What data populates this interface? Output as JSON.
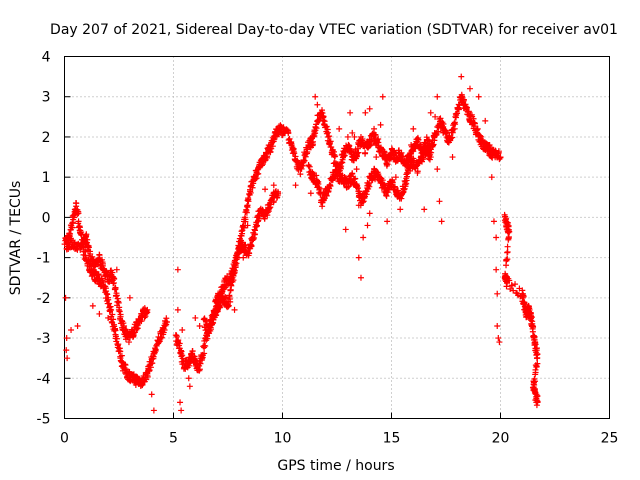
{
  "chart_data": {
    "type": "scatter",
    "title": "Day 207 of 2021, Sidereal Day-to-day VTEC variation (SDTVAR) for receiver av01",
    "xlabel": "GPS time / hours",
    "ylabel": "SDTVAR / TECUs",
    "xlim": [
      0,
      25
    ],
    "ylim": [
      -5,
      4
    ],
    "xticks": [
      0,
      5,
      10,
      15,
      20,
      25
    ],
    "yticks": [
      -5,
      -4,
      -3,
      -2,
      -1,
      0,
      1,
      2,
      3,
      4
    ],
    "grid": true,
    "marker": "+",
    "color": "#ff0000",
    "series": [
      {
        "name": "SDTVAR",
        "track_points": [
          [
            0.0,
            -0.6
          ],
          [
            0.2,
            -0.5
          ],
          [
            0.4,
            0.0
          ],
          [
            0.55,
            0.3
          ],
          [
            0.7,
            -0.3
          ],
          [
            0.9,
            -0.9
          ],
          [
            1.1,
            -1.2
          ],
          [
            1.3,
            -1.4
          ],
          [
            1.5,
            -1.5
          ],
          [
            1.7,
            -1.6
          ],
          [
            1.9,
            -1.9
          ],
          [
            2.1,
            -2.3
          ],
          [
            2.3,
            -2.8
          ],
          [
            2.5,
            -3.3
          ],
          [
            2.7,
            -3.7
          ],
          [
            2.9,
            -3.9
          ],
          [
            3.1,
            -4.0
          ],
          [
            3.3,
            -4.05
          ],
          [
            3.5,
            -4.1
          ],
          [
            3.7,
            -4.0
          ],
          [
            3.9,
            -3.7
          ],
          [
            4.1,
            -3.4
          ],
          [
            4.3,
            -3.1
          ],
          [
            4.5,
            -2.8
          ],
          [
            4.7,
            -2.6
          ]
        ],
        "track_points_2": [
          [
            0.1,
            -0.7
          ],
          [
            0.3,
            -0.6
          ],
          [
            0.6,
            -0.8
          ],
          [
            0.9,
            -0.6
          ],
          [
            1.0,
            -0.5
          ],
          [
            1.2,
            -1.0
          ],
          [
            1.4,
            -1.2
          ],
          [
            1.6,
            -1.0
          ],
          [
            1.8,
            -1.3
          ],
          [
            2.0,
            -1.5
          ],
          [
            2.2,
            -1.4
          ],
          [
            2.4,
            -2.0
          ],
          [
            2.6,
            -2.6
          ],
          [
            2.8,
            -2.9
          ],
          [
            3.0,
            -3.0
          ],
          [
            3.2,
            -2.8
          ],
          [
            3.4,
            -2.6
          ],
          [
            3.6,
            -2.4
          ],
          [
            3.8,
            -2.3
          ]
        ],
        "track_points_3": [
          [
            5.1,
            -3.0
          ],
          [
            5.3,
            -3.3
          ],
          [
            5.5,
            -3.7
          ],
          [
            5.7,
            -3.6
          ],
          [
            5.9,
            -3.4
          ],
          [
            6.1,
            -3.8
          ],
          [
            6.3,
            -3.5
          ],
          [
            6.5,
            -3.0
          ],
          [
            6.7,
            -2.7
          ],
          [
            6.9,
            -2.4
          ],
          [
            7.1,
            -2.2
          ],
          [
            7.3,
            -2.0
          ],
          [
            7.5,
            -2.2
          ],
          [
            7.7,
            -1.6
          ],
          [
            7.9,
            -1.0
          ],
          [
            8.1,
            -0.5
          ],
          [
            8.3,
            0.0
          ],
          [
            8.5,
            0.6
          ],
          [
            8.7,
            1.0
          ],
          [
            8.9,
            1.2
          ],
          [
            9.1,
            1.4
          ],
          [
            9.3,
            1.6
          ],
          [
            9.5,
            1.8
          ],
          [
            9.7,
            2.1
          ],
          [
            9.9,
            2.2
          ],
          [
            10.1,
            2.1
          ]
        ],
        "track_points_4": [
          [
            6.4,
            -2.6
          ],
          [
            6.6,
            -2.8
          ],
          [
            6.8,
            -2.5
          ],
          [
            7.0,
            -2.0
          ],
          [
            7.2,
            -1.8
          ],
          [
            7.4,
            -1.6
          ],
          [
            7.6,
            -1.5
          ],
          [
            7.8,
            -1.2
          ],
          [
            8.0,
            -0.8
          ],
          [
            8.2,
            -0.7
          ],
          [
            8.4,
            -0.9
          ],
          [
            8.6,
            -0.6
          ],
          [
            8.8,
            -0.2
          ],
          [
            9.0,
            0.2
          ],
          [
            9.2,
            0.0
          ],
          [
            9.4,
            0.3
          ],
          [
            9.6,
            0.5
          ],
          [
            9.8,
            0.6
          ]
        ],
        "track_points_5": [
          [
            10.2,
            2.1
          ],
          [
            10.4,
            1.8
          ],
          [
            10.6,
            1.4
          ],
          [
            10.8,
            1.2
          ],
          [
            11.0,
            1.5
          ],
          [
            11.2,
            1.8
          ],
          [
            11.4,
            1.9
          ],
          [
            11.6,
            2.4
          ],
          [
            11.8,
            2.6
          ],
          [
            12.0,
            2.2
          ],
          [
            12.2,
            1.8
          ],
          [
            12.4,
            1.4
          ],
          [
            12.6,
            1.2
          ],
          [
            12.8,
            1.6
          ],
          [
            13.0,
            1.8
          ],
          [
            13.2,
            1.5
          ],
          [
            13.4,
            1.6
          ],
          [
            13.6,
            1.9
          ],
          [
            13.8,
            1.7
          ],
          [
            14.0,
            1.9
          ],
          [
            14.2,
            2.0
          ],
          [
            14.4,
            1.8
          ],
          [
            14.6,
            1.6
          ],
          [
            14.8,
            1.4
          ],
          [
            15.0,
            1.6
          ],
          [
            15.2,
            1.5
          ],
          [
            15.4,
            1.6
          ],
          [
            15.6,
            1.3
          ],
          [
            15.8,
            1.5
          ],
          [
            16.0,
            1.7
          ],
          [
            16.2,
            1.9
          ],
          [
            16.4,
            1.6
          ],
          [
            16.6,
            1.9
          ],
          [
            16.8,
            1.7
          ],
          [
            17.0,
            2.0
          ],
          [
            17.2,
            2.4
          ],
          [
            17.4,
            2.2
          ],
          [
            17.6,
            1.9
          ],
          [
            17.8,
            2.1
          ],
          [
            18.0,
            2.6
          ],
          [
            18.2,
            3.0
          ],
          [
            18.4,
            2.7
          ],
          [
            18.6,
            2.5
          ],
          [
            18.8,
            2.3
          ],
          [
            19.0,
            2.0
          ],
          [
            19.2,
            1.8
          ],
          [
            19.4,
            1.7
          ],
          [
            19.6,
            1.6
          ],
          [
            19.8,
            1.6
          ],
          [
            20.0,
            1.5
          ]
        ],
        "track_points_6": [
          [
            11.2,
            1.2
          ],
          [
            11.4,
            1.0
          ],
          [
            11.6,
            0.9
          ],
          [
            11.8,
            0.4
          ],
          [
            12.0,
            0.6
          ],
          [
            12.2,
            0.9
          ],
          [
            12.4,
            1.1
          ],
          [
            12.6,
            1.0
          ],
          [
            12.8,
            0.9
          ],
          [
            13.0,
            0.8
          ],
          [
            13.2,
            1.0
          ],
          [
            13.4,
            0.8
          ],
          [
            13.6,
            0.4
          ],
          [
            13.8,
            0.6
          ],
          [
            14.0,
            0.9
          ],
          [
            14.2,
            1.1
          ],
          [
            14.4,
            1.0
          ],
          [
            14.6,
            0.8
          ],
          [
            14.8,
            0.6
          ],
          [
            15.0,
            0.9
          ],
          [
            15.2,
            0.6
          ],
          [
            15.4,
            0.5
          ],
          [
            15.6,
            0.8
          ],
          [
            15.8,
            1.2
          ],
          [
            16.0,
            1.4
          ],
          [
            16.2,
            1.2
          ],
          [
            16.4,
            1.5
          ],
          [
            16.6,
            1.7
          ],
          [
            16.8,
            1.5
          ]
        ],
        "track_points_7": [
          [
            20.2,
            0.0
          ],
          [
            20.3,
            -0.2
          ],
          [
            20.4,
            -0.4
          ],
          [
            20.2,
            -1.5
          ],
          [
            20.3,
            -1.6
          ],
          [
            21.0,
            -1.9
          ],
          [
            21.1,
            -2.2
          ],
          [
            21.2,
            -2.4
          ],
          [
            21.3,
            -2.3
          ],
          [
            21.4,
            -2.5
          ],
          [
            21.5,
            -2.8
          ],
          [
            21.6,
            -3.2
          ],
          [
            21.7,
            -3.5
          ],
          [
            21.5,
            -4.2
          ],
          [
            21.6,
            -4.4
          ],
          [
            21.7,
            -4.6
          ]
        ],
        "outliers": [
          [
            0.05,
            -2.0
          ],
          [
            0.08,
            -3.3
          ],
          [
            0.1,
            -3.0
          ],
          [
            0.12,
            -3.5
          ],
          [
            0.3,
            -2.8
          ],
          [
            0.6,
            -2.7
          ],
          [
            1.3,
            -2.2
          ],
          [
            1.6,
            -2.4
          ],
          [
            2.0,
            -2.5
          ],
          [
            2.4,
            -1.3
          ],
          [
            3.0,
            -2.0
          ],
          [
            3.3,
            -2.6
          ],
          [
            4.0,
            -4.4
          ],
          [
            4.1,
            -4.8
          ],
          [
            5.2,
            -1.3
          ],
          [
            5.2,
            -2.3
          ],
          [
            5.3,
            -4.6
          ],
          [
            5.35,
            -4.8
          ],
          [
            5.4,
            -2.8
          ],
          [
            5.7,
            -4.0
          ],
          [
            5.75,
            -4.2
          ],
          [
            6.0,
            -2.5
          ],
          [
            6.2,
            -2.7
          ],
          [
            7.6,
            -2.1
          ],
          [
            7.8,
            -2.3
          ],
          [
            8.2,
            -1.0
          ],
          [
            8.4,
            -0.2
          ],
          [
            9.2,
            0.7
          ],
          [
            9.6,
            0.8
          ],
          [
            10.6,
            0.8
          ],
          [
            11.3,
            0.6
          ],
          [
            11.5,
            3.0
          ],
          [
            11.6,
            2.8
          ],
          [
            12.6,
            2.2
          ],
          [
            13.0,
            2.0
          ],
          [
            13.1,
            2.6
          ],
          [
            13.2,
            2.1
          ],
          [
            13.3,
            2.0
          ],
          [
            13.4,
            1.2
          ],
          [
            13.5,
            0.3
          ],
          [
            13.6,
            2.0
          ],
          [
            13.8,
            2.6
          ],
          [
            14.0,
            2.7
          ],
          [
            14.5,
            2.3
          ],
          [
            14.6,
            3.0
          ],
          [
            14.2,
            2.2
          ],
          [
            12.9,
            -0.3
          ],
          [
            13.5,
            -1.0
          ],
          [
            13.6,
            -1.5
          ],
          [
            13.7,
            -0.5
          ],
          [
            13.9,
            -0.2
          ],
          [
            14.0,
            0.1
          ],
          [
            14.3,
            1.5
          ],
          [
            14.8,
            -0.1
          ],
          [
            15.2,
            1.0
          ],
          [
            15.4,
            0.2
          ],
          [
            15.9,
            1.8
          ],
          [
            16.0,
            2.2
          ],
          [
            16.5,
            0.2
          ],
          [
            16.8,
            2.6
          ],
          [
            17.0,
            2.5
          ],
          [
            17.1,
            1.2
          ],
          [
            17.2,
            0.4
          ],
          [
            17.3,
            -0.1
          ],
          [
            17.1,
            3.0
          ],
          [
            17.8,
            1.5
          ],
          [
            18.2,
            3.5
          ],
          [
            18.6,
            3.2
          ],
          [
            19.0,
            3.0
          ],
          [
            19.3,
            2.4
          ],
          [
            19.5,
            1.8
          ],
          [
            19.6,
            1.0
          ],
          [
            19.7,
            -0.1
          ],
          [
            19.8,
            -0.5
          ],
          [
            19.8,
            -1.3
          ],
          [
            19.85,
            -1.9
          ],
          [
            19.85,
            -2.7
          ],
          [
            19.9,
            -3.0
          ],
          [
            19.95,
            -3.1
          ]
        ]
      }
    ]
  }
}
